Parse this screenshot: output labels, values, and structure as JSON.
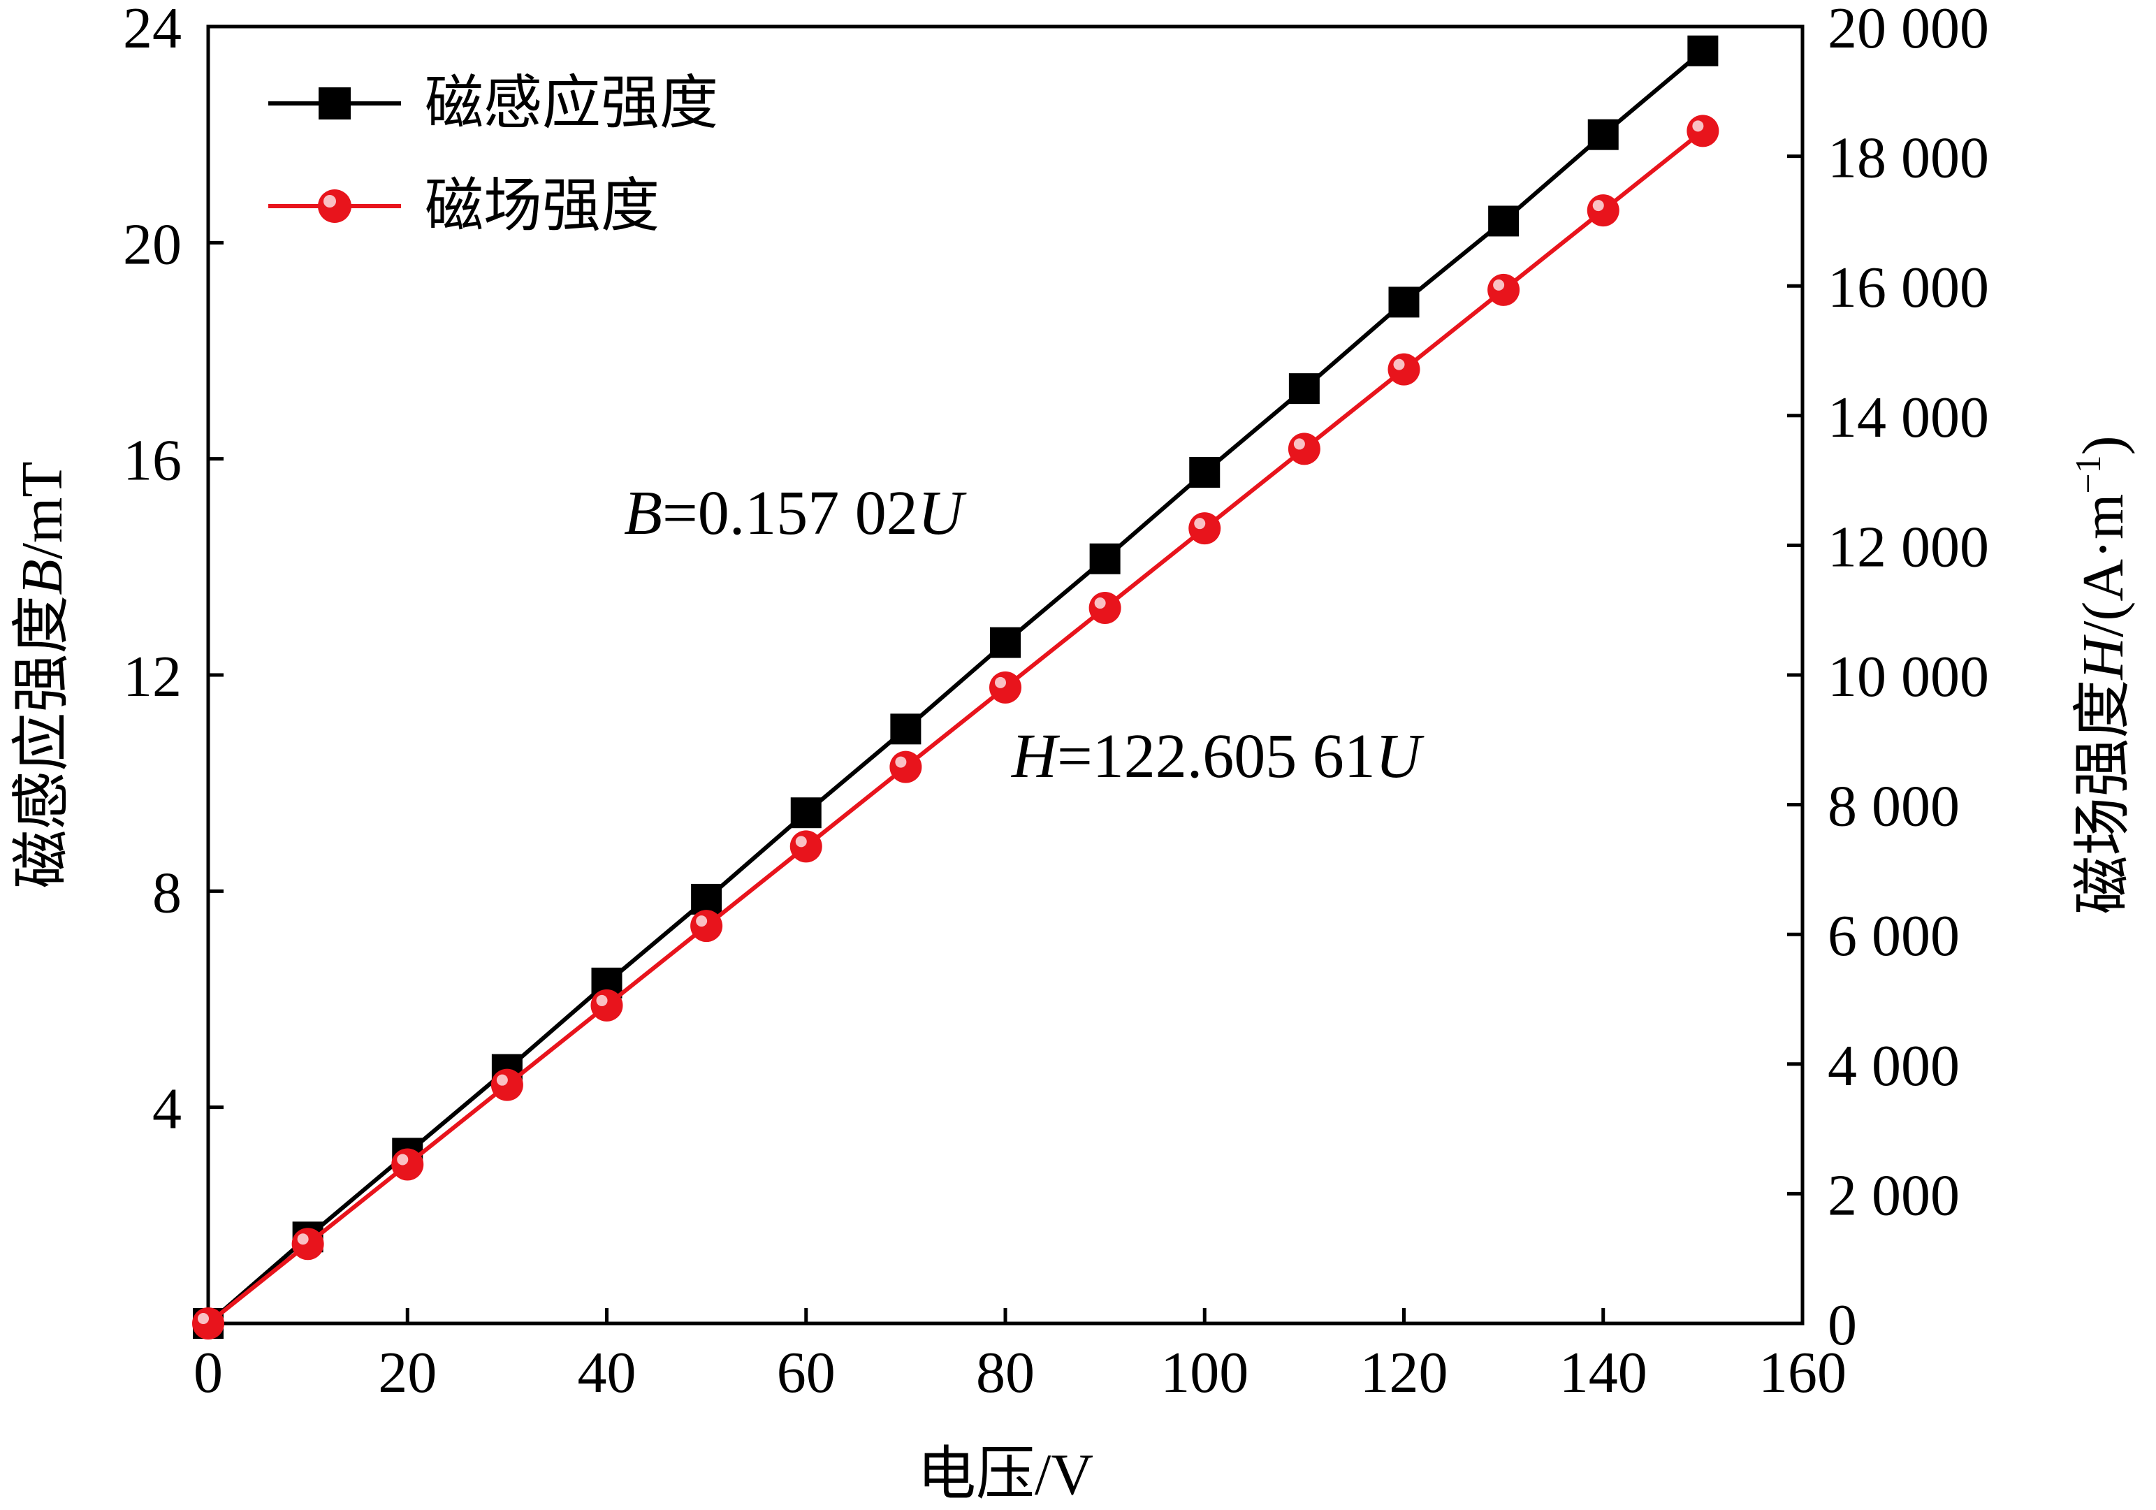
{
  "chart_data": {
    "type": "line",
    "xlabel": "电压/V",
    "ylabel_left_prefix": "磁感应强度",
    "ylabel_left_var": "B",
    "ylabel_left_unit": "/mT",
    "ylabel_right_prefix": "磁场强度",
    "ylabel_right_var": "H",
    "ylabel_right_unit_a": "/(A·m",
    "ylabel_right_unit_exp": "−1",
    "ylabel_right_unit_b": ")",
    "xlim": [
      0,
      160
    ],
    "ylim_left": [
      0,
      24
    ],
    "ylim_right": [
      0,
      20000
    ],
    "x_ticks": [
      "0",
      "20",
      "40",
      "60",
      "80",
      "100",
      "120",
      "140",
      "160"
    ],
    "y_left_ticks": [
      "4",
      "8",
      "12",
      "16",
      "20",
      "24"
    ],
    "y_right_ticks": [
      "0",
      "2 000",
      "4 000",
      "6 000",
      "8 000",
      "10 000",
      "12 000",
      "14 000",
      "16 000",
      "18 000",
      "20 000"
    ],
    "x": [
      0,
      10,
      20,
      30,
      40,
      50,
      60,
      70,
      80,
      90,
      100,
      110,
      120,
      130,
      140,
      150
    ],
    "series": [
      {
        "name": "磁感应强度",
        "axis": "left",
        "marker": "square",
        "color": "#000000",
        "values": [
          0.0,
          1.6,
          3.15,
          4.7,
          6.3,
          7.85,
          9.45,
          11.0,
          12.6,
          14.15,
          15.75,
          17.3,
          18.9,
          20.4,
          22.0,
          23.55
        ]
      },
      {
        "name": "磁场强度",
        "axis": "right",
        "marker": "circle",
        "color": "#e8141c",
        "values": [
          0,
          1226,
          2452,
          3678,
          4904,
          6130,
          7356,
          8582,
          9808,
          11034,
          12261,
          13487,
          14713,
          15939,
          17165,
          18391
        ]
      }
    ],
    "annotations": [
      {
        "var": "B",
        "text": "=0.157 02",
        "var2": "U"
      },
      {
        "var": "H",
        "text": "=122.605 61",
        "var2": "U"
      }
    ],
    "legend_position": "top-left",
    "grid": false
  }
}
